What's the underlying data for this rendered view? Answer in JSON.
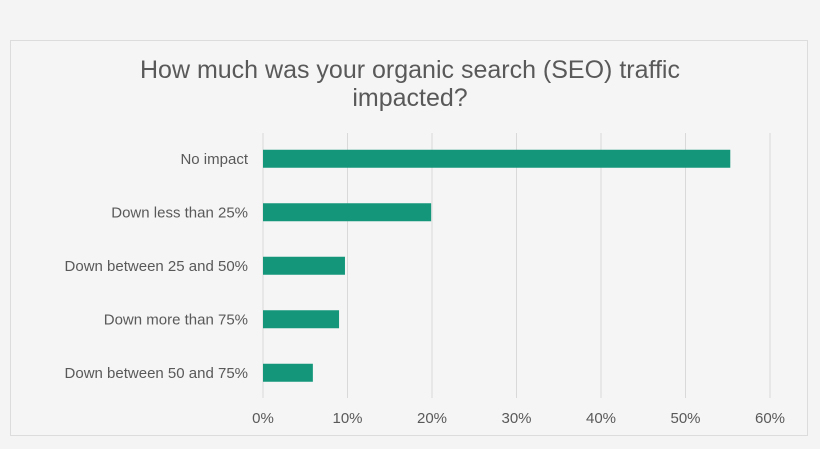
{
  "colors": {
    "bar": "#13967a",
    "grid": "#d9d9d9",
    "text": "#595959",
    "background": "#f5f5f5"
  },
  "chart_data": {
    "type": "bar",
    "orientation": "horizontal",
    "title": "How much was your organic search (SEO) traffic impacted?",
    "title_lines": [
      "How much was your organic search (SEO) traffic",
      "impacted?"
    ],
    "categories": [
      "No impact",
      "Down less than 25%",
      "Down between 25 and 50%",
      "Down more than 75%",
      "Down between 50 and 75%"
    ],
    "values": [
      55.3,
      19.9,
      9.7,
      9.0,
      5.9
    ],
    "xlim": [
      0,
      60
    ],
    "x_ticks": [
      0,
      10,
      20,
      30,
      40,
      50,
      60
    ],
    "x_tick_labels": [
      "0%",
      "10%",
      "20%",
      "30%",
      "40%",
      "50%",
      "60%"
    ],
    "grid": "vertical",
    "legend": "none"
  }
}
